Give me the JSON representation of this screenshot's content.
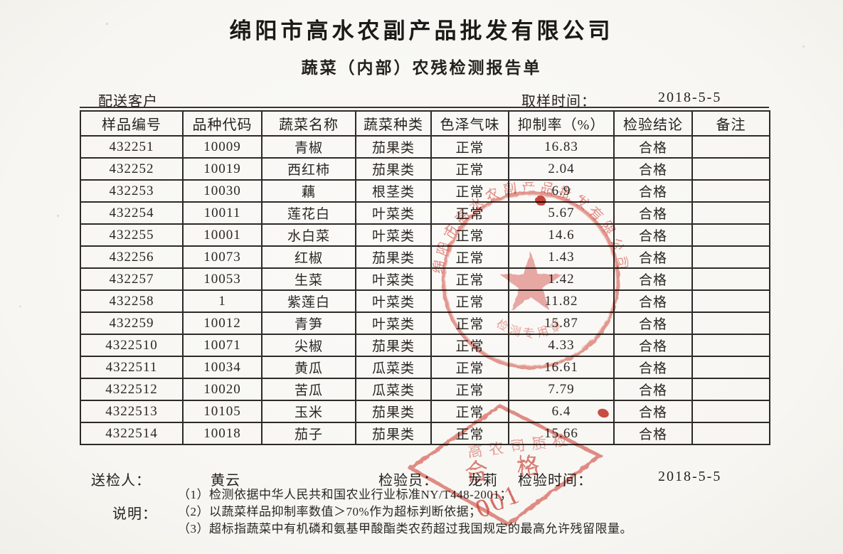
{
  "title": "绵阳市高水农副产品批发有限公司",
  "subtitle": "蔬菜（内部）农残检测报告单",
  "meta": {
    "customer_label": "配送客户",
    "sampling_time_label": "取样时间：",
    "sampling_time_value": "2018-5-5"
  },
  "table": {
    "headers": [
      "样品编号",
      "品种代码",
      "蔬菜名称",
      "蔬菜种类",
      "色泽气味",
      "抑制率（%）",
      "检验结论",
      "备注"
    ],
    "rows": [
      [
        "432251",
        "10009",
        "青椒",
        "茄果类",
        "正常",
        "16.83",
        "合格",
        ""
      ],
      [
        "432252",
        "10019",
        "西红柿",
        "茄果类",
        "正常",
        "2.04",
        "合格",
        ""
      ],
      [
        "432253",
        "10030",
        "藕",
        "根茎类",
        "正常",
        "6.9",
        "合格",
        ""
      ],
      [
        "432254",
        "10011",
        "莲花白",
        "叶菜类",
        "正常",
        "5.67",
        "合格",
        ""
      ],
      [
        "432255",
        "10001",
        "水白菜",
        "叶菜类",
        "正常",
        "14.6",
        "合格",
        ""
      ],
      [
        "432256",
        "10073",
        "红椒",
        "茄果类",
        "正常",
        "1.43",
        "合格",
        ""
      ],
      [
        "432257",
        "10053",
        "生菜",
        "叶菜类",
        "正常",
        "1.42",
        "合格",
        ""
      ],
      [
        "432258",
        "1",
        "紫莲白",
        "叶菜类",
        "正常",
        "11.82",
        "合格",
        ""
      ],
      [
        "432259",
        "10012",
        "青笋",
        "叶菜类",
        "正常",
        "15.87",
        "合格",
        ""
      ],
      [
        "4322510",
        "10071",
        "尖椒",
        "茄果类",
        "正常",
        "4.33",
        "合格",
        ""
      ],
      [
        "4322511",
        "10034",
        "黄瓜",
        "瓜菜类",
        "正常",
        "16.61",
        "合格",
        ""
      ],
      [
        "4322512",
        "10020",
        "苦瓜",
        "瓜菜类",
        "正常",
        "7.79",
        "合格",
        ""
      ],
      [
        "4322513",
        "10105",
        "玉米",
        "茄果类",
        "正常",
        "6.4",
        "合格",
        ""
      ],
      [
        "4322514",
        "10018",
        "茄子",
        "茄果类",
        "正常",
        "15.66",
        "合格",
        ""
      ]
    ]
  },
  "footer": {
    "sender_label": "送检人：",
    "sender_value": "黄云",
    "inspector_label": "检验员：",
    "inspector_value": "龙莉",
    "time_label": "检验时间：",
    "time_value": "2018-5-5"
  },
  "notes": {
    "label": "说明：",
    "items": [
      "（1）检测依据中华人民共和国农业行业标准NY/T448-2001；",
      "（2）以蔬菜样品抑制率数值＞70%作为超标判断依据；",
      "（3）超标指蔬菜中有机磷和氨基甲酸酯类农药超过我国规定的最高允许残留限量。"
    ]
  },
  "stamps": {
    "ink_color": "#d2372b",
    "round_seal": {
      "arc_text": "绵阳市高水农副产品批发有限公司",
      "bottom_text": "检测专用章"
    },
    "diamond_seal": {
      "top_text": "高农司质检",
      "middle_text": "合 格",
      "serial": "001"
    }
  }
}
